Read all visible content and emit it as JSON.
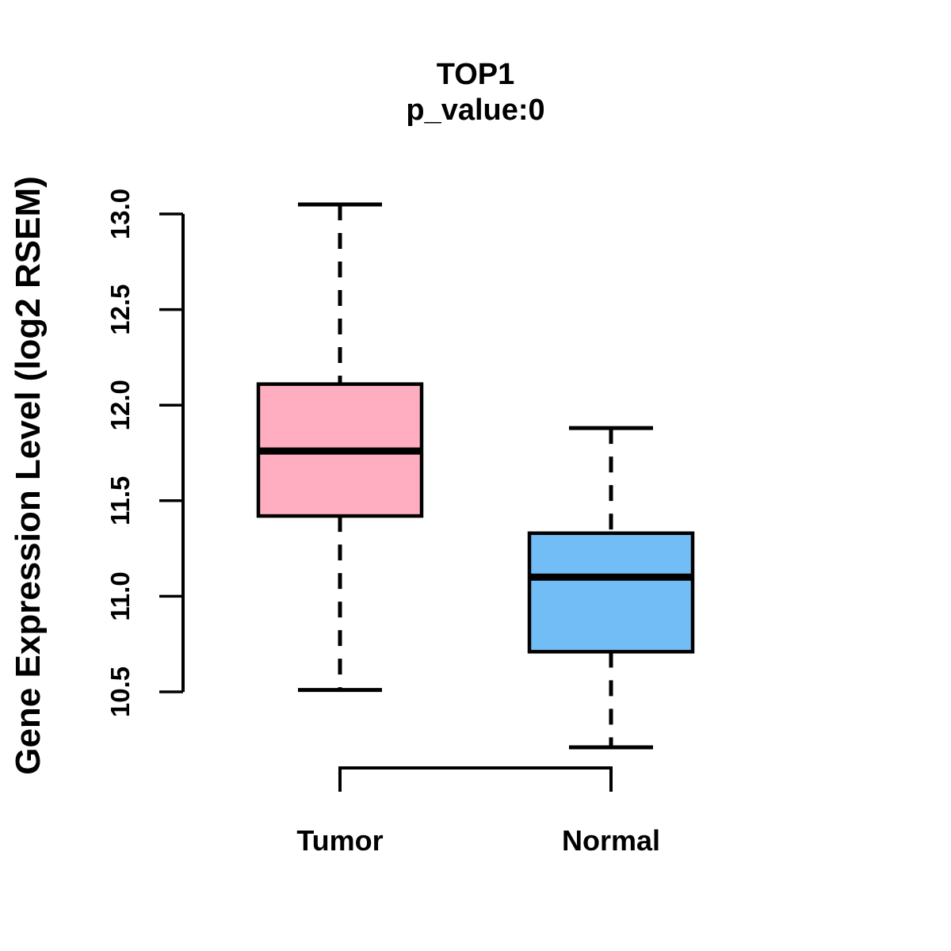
{
  "chart_data": {
    "type": "boxplot",
    "title": "TOP1",
    "subtitle": "p_value:0",
    "ylabel": "Gene Expression Level (log2 RSEM)",
    "xlabel": "",
    "categories": [
      "Tumor",
      "Normal"
    ],
    "y_axis": {
      "tick_min": 10.5,
      "tick_max": 13.0,
      "tick_step": 0.5,
      "ticks": [
        {
          "label": "10.5",
          "value": 10.5
        },
        {
          "label": "11.0",
          "value": 11.0
        },
        {
          "label": "11.5",
          "value": 11.5
        },
        {
          "label": "12.0",
          "value": 12.0
        },
        {
          "label": "12.5",
          "value": 12.5
        },
        {
          "label": "13.0",
          "value": 13.0
        }
      ]
    },
    "series": [
      {
        "name": "Tumor",
        "color": "#FFAEC1",
        "lower_whisker": 10.51,
        "q1": 11.42,
        "median": 11.76,
        "q3": 12.11,
        "upper_whisker": 13.05
      },
      {
        "name": "Normal",
        "color": "#73BDF6",
        "lower_whisker": 10.21,
        "q1": 10.71,
        "median": 11.1,
        "q3": 11.33,
        "upper_whisker": 11.88
      }
    ],
    "layout_hints": {
      "grid": false,
      "legend": "none",
      "whisker_style": "dashed",
      "box_border_color": "#000000",
      "median_color": "#000000",
      "background": "#FFFFFF"
    }
  }
}
